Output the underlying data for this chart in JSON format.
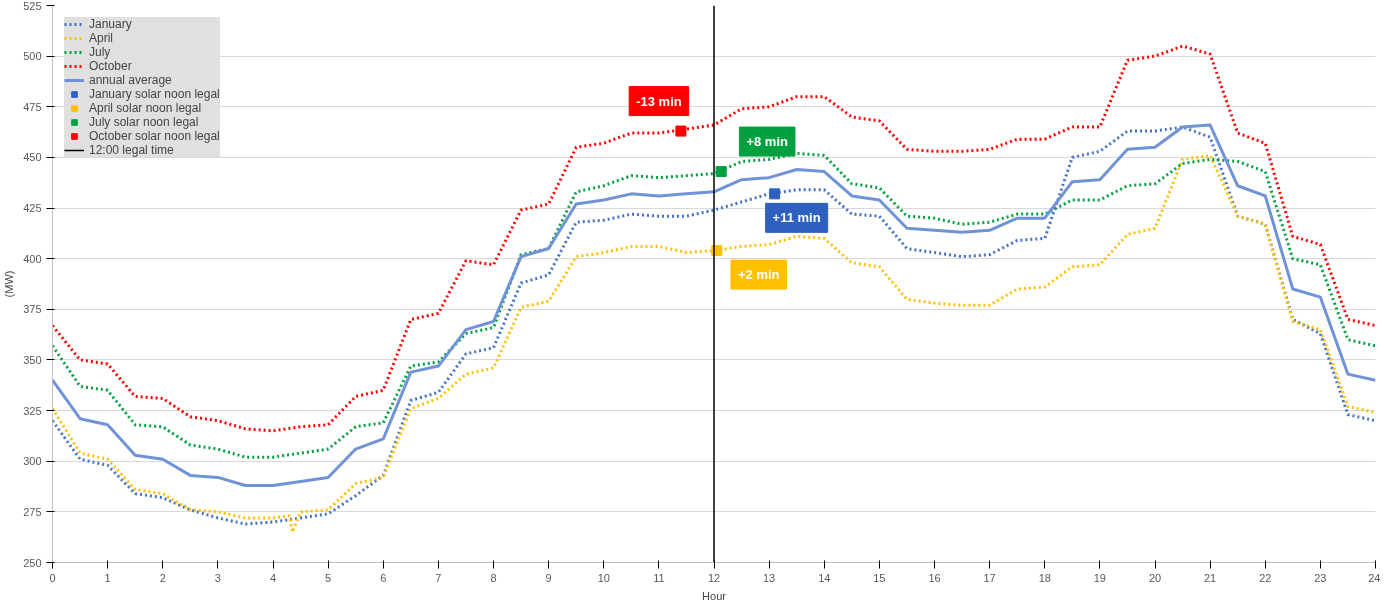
{
  "chart_data": {
    "type": "line",
    "xlabel": "Hour",
    "ylabel": "(MW)",
    "x": [
      0,
      0.5,
      1,
      1.5,
      2,
      2.5,
      3,
      3.5,
      4,
      4.5,
      5,
      5.5,
      6,
      6.5,
      7,
      7.5,
      8,
      8.5,
      9,
      9.5,
      10,
      10.5,
      11,
      11.5,
      12,
      12.5,
      13,
      13.5,
      14,
      14.5,
      15,
      15.5,
      16,
      16.5,
      17,
      17.5,
      18,
      18.5,
      19,
      19.5,
      20,
      20.5,
      21,
      21.5,
      22,
      22.5,
      23,
      23.5,
      24
    ],
    "xlim": [
      0,
      24
    ],
    "xticks": [
      0,
      1,
      2,
      3,
      4,
      5,
      6,
      7,
      8,
      9,
      10,
      11,
      12,
      13,
      14,
      15,
      16,
      17,
      18,
      19,
      20,
      21,
      22,
      23,
      24
    ],
    "ylim": [
      250,
      525
    ],
    "yticks": [
      250,
      275,
      300,
      325,
      350,
      375,
      400,
      425,
      450,
      475,
      500,
      525
    ],
    "grid": "y",
    "legend": "top left",
    "series": [
      {
        "name": "January",
        "color": "#4472c4",
        "line_style": "dotted",
        "values": [
          320,
          301,
          298,
          284,
          282,
          276,
          272,
          269,
          270,
          272,
          274,
          283,
          293,
          330,
          334,
          353,
          356,
          388,
          392,
          418,
          419,
          422,
          421,
          421,
          424,
          428,
          432,
          434,
          434,
          422,
          421,
          405,
          403,
          401,
          402,
          409,
          410,
          450,
          453,
          463,
          463,
          465,
          460,
          421,
          417,
          370,
          363,
          323,
          320
        ]
      },
      {
        "name": "April",
        "color": "#ffc000",
        "line_style": "dotted",
        "x": [
          0,
          0.5,
          1,
          1.5,
          2,
          2.5,
          3,
          3.5,
          4,
          4.3,
          4.35,
          4.5,
          5,
          5.5,
          6,
          6.5,
          7,
          7.5,
          8,
          8.5,
          9,
          9.5,
          10,
          10.5,
          11,
          11.5,
          12,
          12.5,
          13,
          13.5,
          14,
          14.5,
          15,
          15.5,
          16,
          16.5,
          17,
          17.5,
          18,
          18.5,
          19,
          19.5,
          20,
          20.5,
          21,
          21.5,
          22,
          22.5,
          23,
          23.5,
          24
        ],
        "values": [
          326,
          304,
          301,
          286,
          284,
          276,
          275,
          272,
          272,
          273,
          265,
          275,
          276,
          289,
          292,
          326,
          331,
          343,
          346,
          376,
          379,
          401,
          403,
          406,
          406,
          403,
          404,
          406,
          407,
          411,
          410,
          398,
          396,
          380,
          378,
          377,
          377,
          385,
          386,
          396,
          397,
          412,
          415,
          449,
          451,
          421,
          417,
          369,
          365,
          327,
          324
        ]
      },
      {
        "name": "July",
        "color": "#00a040",
        "line_style": "dotted",
        "values": [
          357,
          337,
          335,
          318,
          317,
          308,
          306,
          302,
          302,
          304,
          306,
          317,
          319,
          347,
          349,
          363,
          366,
          402,
          405,
          433,
          436,
          441,
          440,
          441,
          442,
          448,
          449,
          452,
          451,
          437,
          435,
          421,
          420,
          417,
          418,
          422,
          422,
          429,
          429,
          436,
          437,
          447,
          449,
          448,
          443,
          400,
          397,
          360,
          357
        ]
      },
      {
        "name": "October",
        "color": "#ff0000",
        "line_style": "dotted",
        "values": [
          367,
          350,
          348,
          332,
          331,
          322,
          320,
          316,
          315,
          317,
          318,
          332,
          335,
          370,
          373,
          399,
          397,
          424,
          427,
          455,
          457,
          462,
          462,
          464,
          466,
          474,
          475,
          480,
          480,
          470,
          468,
          454,
          453,
          453,
          454,
          459,
          459,
          465,
          465,
          498,
          500,
          505,
          501,
          462,
          457,
          411,
          407,
          370,
          367
        ]
      },
      {
        "name": "annual average",
        "color": "#6f93d6",
        "line_style": "solid",
        "values": [
          340,
          321,
          318,
          303,
          301,
          293,
          292,
          288,
          288,
          290,
          292,
          306,
          311,
          344,
          347,
          365,
          369,
          401,
          405,
          427,
          429,
          432,
          431,
          432,
          433,
          439,
          440,
          444,
          443,
          431,
          429,
          415,
          414,
          413,
          414,
          420,
          420,
          438,
          439,
          454,
          455,
          465,
          466,
          436,
          431,
          385,
          381,
          343,
          340
        ]
      },
      {
        "name": "January solar noon legal",
        "type": "scatter",
        "marker": "square",
        "color": "#2e60c0",
        "x": [
          13.1
        ],
        "values": [
          432
        ]
      },
      {
        "name": "April solar noon legal",
        "type": "scatter",
        "marker": "square",
        "color": "#ffc000",
        "x": [
          12.05
        ],
        "values": [
          404
        ]
      },
      {
        "name": "July solar noon legal",
        "type": "scatter",
        "marker": "square",
        "color": "#00a040",
        "x": [
          12.13
        ],
        "values": [
          443
        ]
      },
      {
        "name": "October solar noon legal",
        "type": "scatter",
        "marker": "square",
        "color": "#ff0000",
        "x": [
          11.4
        ],
        "values": [
          463
        ]
      },
      {
        "name": "12:00 legal time",
        "color": "#000000",
        "line_style": "solid",
        "x": [
          12,
          12
        ],
        "values": [
          250,
          525
        ]
      }
    ],
    "annotations": [
      {
        "text": "+11 min",
        "x": 13.1,
        "y": 432
      },
      {
        "text": "+2 min",
        "x": 12.05,
        "y": 404
      },
      {
        "text": "+8 min",
        "x": 12.13,
        "y": 443
      },
      {
        "text": "-13 min",
        "x": 11.4,
        "y": 463
      }
    ]
  }
}
